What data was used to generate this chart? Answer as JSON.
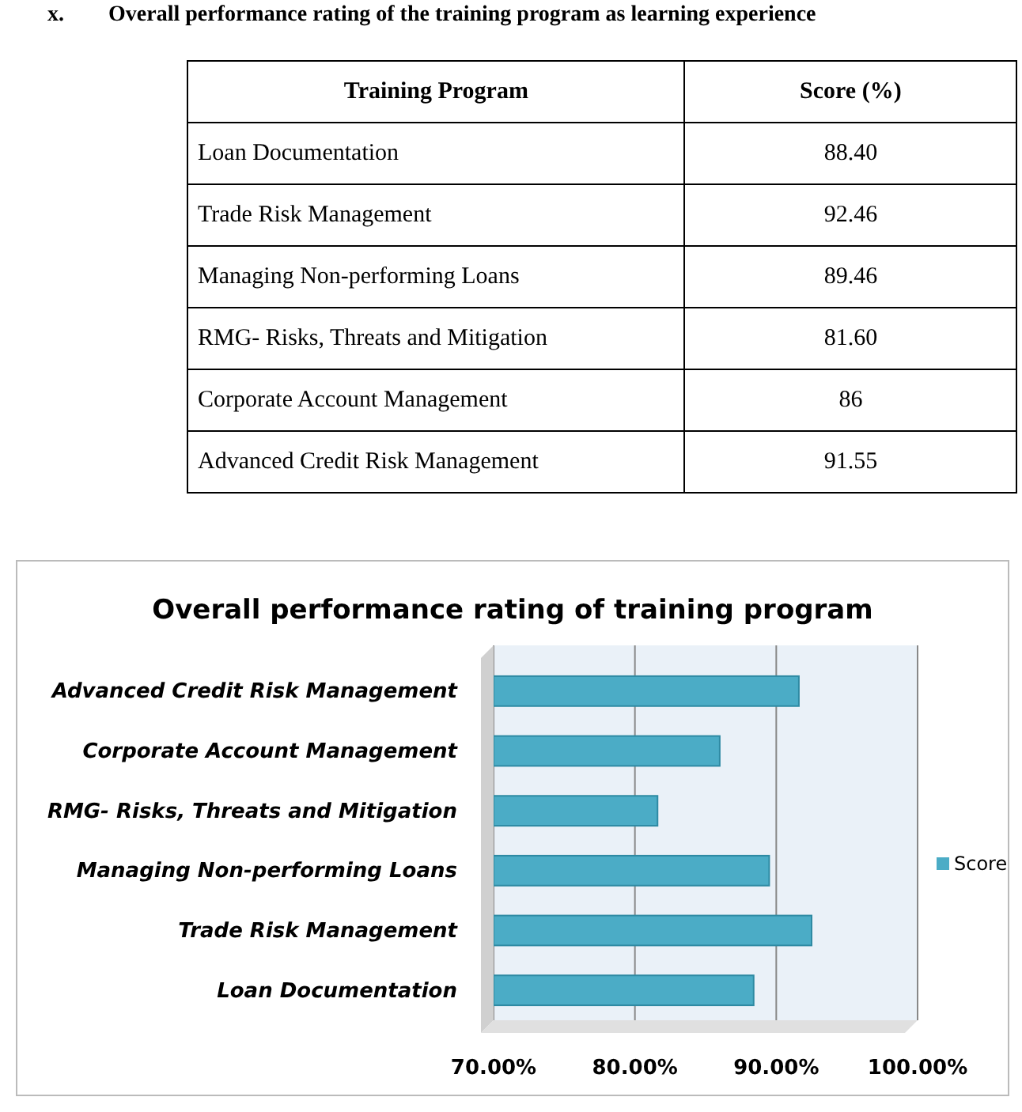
{
  "chart_data": [
    {
      "type": "other",
      "title": "x.        Overall performance rating of the training program as learning experience",
      "annotations": [
        "Training Program",
        "Score (%)",
        "Loan Documentation",
        "88.40",
        "Trade Risk Management",
        "92.46",
        "Managing Non-performing Loans",
        "89.46",
        "RMG- Risks, Threats and Mitigation",
        "81.60",
        "Corporate Account Management",
        "86",
        "Advanced Credit Risk Management",
        "91.55"
      ]
    },
    {
      "type": "bar",
      "orientation": "horizontal",
      "title": "Overall performance rating of training program",
      "categories": [
        "Advanced Credit Risk Management",
        "Corporate Account Management",
        "RMG- Risks, Threats and Mitigation",
        "Managing Non-performing Loans",
        "Trade Risk Management",
        "Loan Documentation"
      ],
      "series": [
        {
          "name": "Score",
          "color": "#4bacc6",
          "values": [
            91.6,
            86,
            81.6,
            89.5,
            92.5,
            88.4
          ]
        }
      ],
      "xlim": [
        70,
        100
      ],
      "xticks": [
        {
          "value": 70,
          "label": "70.00%"
        },
        {
          "value": 80,
          "label": "80.00%"
        },
        {
          "value": 90,
          "label": "90.00%"
        },
        {
          "value": 100,
          "label": "100.00%"
        }
      ],
      "grid": "x",
      "legend": "right"
    }
  ]
}
